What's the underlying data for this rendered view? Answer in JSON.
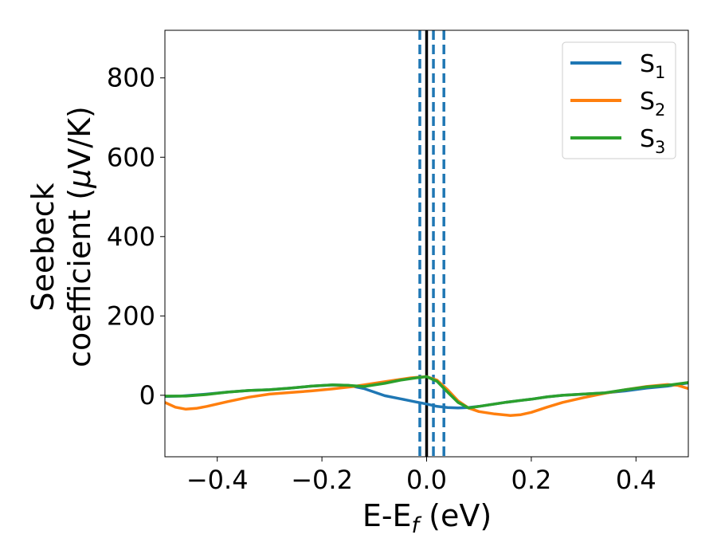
{
  "chart_data": {
    "type": "line",
    "xlabel_main": "E-E",
    "xlabel_sub": "f",
    "xlabel_tail": " (eV)",
    "ylabel_line1": "Seebeck",
    "ylabel_line2_a": "coefficient  (",
    "ylabel_line2_mu": "μ",
    "ylabel_line2_b": "V/K)",
    "xlim": [
      -0.5,
      0.5
    ],
    "ylim": [
      -155,
      920
    ],
    "x_ticks": [
      -0.4,
      -0.2,
      0.0,
      0.2,
      0.4
    ],
    "x_tick_labels": [
      "−0.4",
      "−0.2",
      "0.0",
      "0.2",
      "0.4"
    ],
    "y_ticks": [
      0,
      200,
      400,
      600,
      800
    ],
    "y_tick_labels": [
      "0",
      "200",
      "400",
      "600",
      "800"
    ],
    "grid": false,
    "legend_position": "top-right",
    "vlines": [
      {
        "x": 0.0,
        "style": "solid",
        "color": "#000000"
      },
      {
        "x": -0.013,
        "style": "dashed",
        "color": "#1f77b4"
      },
      {
        "x": 0.013,
        "style": "dashed",
        "color": "#1f77b4"
      },
      {
        "x": 0.033,
        "style": "dashed",
        "color": "#1f77b4"
      }
    ],
    "series": [
      {
        "name": "S",
        "sub": "1",
        "color": "#1f77b4",
        "x": [
          -0.5,
          -0.47,
          -0.45,
          -0.42,
          -0.38,
          -0.34,
          -0.3,
          -0.26,
          -0.22,
          -0.18,
          -0.15,
          -0.12,
          -0.1,
          -0.08,
          -0.05,
          -0.02,
          0.0,
          0.02,
          0.04,
          0.06,
          0.08,
          0.1,
          0.12,
          0.15,
          0.18,
          0.2,
          0.23,
          0.26,
          0.3,
          0.34,
          0.38,
          0.42,
          0.46,
          0.5
        ],
        "y": [
          -3,
          -2,
          0,
          3,
          8,
          12,
          14,
          18,
          23,
          26,
          25,
          17,
          8,
          -1,
          -9,
          -17,
          -22,
          -28,
          -31,
          -32,
          -31,
          -28,
          -24,
          -18,
          -13,
          -10,
          -4,
          0,
          3,
          6,
          11,
          18,
          23,
          31
        ]
      },
      {
        "name": "S",
        "sub": "2",
        "color": "#ff7f0e",
        "x": [
          -0.5,
          -0.48,
          -0.46,
          -0.44,
          -0.42,
          -0.38,
          -0.34,
          -0.3,
          -0.26,
          -0.22,
          -0.18,
          -0.14,
          -0.1,
          -0.06,
          -0.03,
          0.0,
          0.02,
          0.04,
          0.06,
          0.08,
          0.1,
          0.13,
          0.16,
          0.18,
          0.2,
          0.23,
          0.26,
          0.3,
          0.34,
          0.38,
          0.42,
          0.46,
          0.48,
          0.5
        ],
        "y": [
          -18,
          -30,
          -35,
          -33,
          -28,
          -16,
          -5,
          3,
          7,
          11,
          16,
          22,
          30,
          38,
          44,
          47,
          38,
          14,
          -14,
          -32,
          -41,
          -47,
          -51,
          -49,
          -43,
          -30,
          -18,
          -6,
          5,
          14,
          22,
          27,
          25,
          17
        ]
      },
      {
        "name": "S",
        "sub": "3",
        "color": "#2ca02c",
        "x": [
          -0.5,
          -0.46,
          -0.42,
          -0.38,
          -0.34,
          -0.3,
          -0.26,
          -0.22,
          -0.18,
          -0.15,
          -0.12,
          -0.08,
          -0.05,
          -0.02,
          0.0,
          0.02,
          0.04,
          0.06,
          0.08,
          0.1,
          0.12,
          0.15,
          0.18,
          0.2,
          0.23,
          0.26,
          0.3,
          0.34,
          0.38,
          0.42,
          0.46,
          0.5
        ],
        "y": [
          -2,
          -2,
          2,
          8,
          12,
          14,
          18,
          23,
          26,
          25,
          22,
          30,
          38,
          44,
          47,
          35,
          8,
          -18,
          -32,
          -28,
          -24,
          -18,
          -13,
          -10,
          -4,
          0,
          3,
          6,
          14,
          21,
          25,
          32
        ]
      }
    ]
  }
}
